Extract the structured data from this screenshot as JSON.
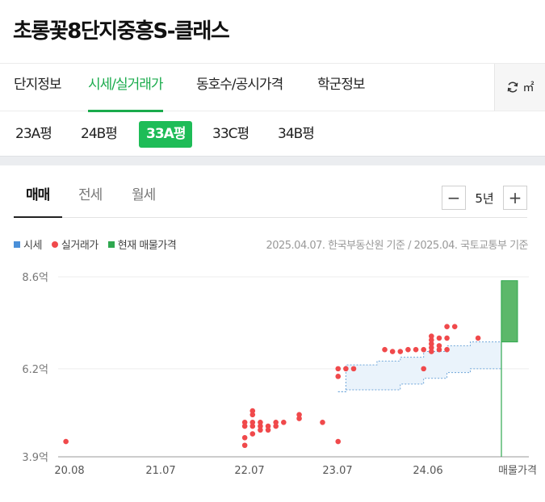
{
  "title": "초롱꽃8단지중흥S-클래스",
  "main_tabs": [
    {
      "label": "단지정보"
    },
    {
      "label": "시세/실거래가"
    },
    {
      "label": "동호수/공시가격"
    },
    {
      "label": "학군정보"
    }
  ],
  "unit_toggle": {
    "label": "㎡",
    "icon": "refresh-icon"
  },
  "types": [
    "23A평",
    "24B평",
    "33A평",
    "33C평",
    "34B평"
  ],
  "selected_type": "33A평",
  "deal_tabs": [
    "매매",
    "전세",
    "월세"
  ],
  "selected_deal": "매매",
  "period": {
    "minus": "−",
    "value": "5년",
    "plus": "+"
  },
  "legend": [
    {
      "label": "시세",
      "color": "#4a90d9",
      "shape": "square"
    },
    {
      "label": "실거래가",
      "color": "#f0494b",
      "shape": "circle"
    },
    {
      "label": "현재 매물가격",
      "color": "#2fa84f",
      "shape": "square"
    }
  ],
  "source_text": "2025.04.07. 한국부동산원 기준 / 2025.04. 국토교통부 기준",
  "chart_data": {
    "type": "scatter",
    "y_unit": "억",
    "ylim": [
      3.9,
      8.6
    ],
    "y_ticks": [
      {
        "value": 3.9,
        "label": "3.9억"
      },
      {
        "value": 6.2,
        "label": "6.2억"
      },
      {
        "value": 8.6,
        "label": "8.6억"
      }
    ],
    "x_ticks": [
      "20.08",
      "21.07",
      "22.07",
      "23.07",
      "24.06",
      "매물가격"
    ],
    "xlim": [
      "2020-07",
      "2025-04"
    ],
    "grid": true,
    "series": [
      {
        "name": "실거래가",
        "points": [
          {
            "x": "2020-08",
            "y": 4.3
          },
          {
            "x": "2022-07",
            "y": 4.2
          },
          {
            "x": "2022-07",
            "y": 4.4
          },
          {
            "x": "2022-07",
            "y": 4.7
          },
          {
            "x": "2022-07",
            "y": 4.8
          },
          {
            "x": "2022-08",
            "y": 4.5
          },
          {
            "x": "2022-08",
            "y": 4.7
          },
          {
            "x": "2022-08",
            "y": 4.8
          },
          {
            "x": "2022-08",
            "y": 5.0
          },
          {
            "x": "2022-08",
            "y": 5.1
          },
          {
            "x": "2022-09",
            "y": 4.6
          },
          {
            "x": "2022-09",
            "y": 4.7
          },
          {
            "x": "2022-09",
            "y": 4.8
          },
          {
            "x": "2022-10",
            "y": 4.6
          },
          {
            "x": "2022-10",
            "y": 4.7
          },
          {
            "x": "2022-11",
            "y": 4.7
          },
          {
            "x": "2022-11",
            "y": 4.8
          },
          {
            "x": "2022-12",
            "y": 4.8
          },
          {
            "x": "2023-02",
            "y": 4.9
          },
          {
            "x": "2023-02",
            "y": 5.0
          },
          {
            "x": "2023-05",
            "y": 4.8
          },
          {
            "x": "2023-07",
            "y": 4.3
          },
          {
            "x": "2023-07",
            "y": 6.0
          },
          {
            "x": "2023-07",
            "y": 6.2
          },
          {
            "x": "2023-08",
            "y": 6.2
          },
          {
            "x": "2023-09",
            "y": 6.2
          },
          {
            "x": "2024-01",
            "y": 6.7
          },
          {
            "x": "2024-02",
            "y": 6.65
          },
          {
            "x": "2024-03",
            "y": 6.65
          },
          {
            "x": "2024-04",
            "y": 6.7
          },
          {
            "x": "2024-05",
            "y": 6.7
          },
          {
            "x": "2024-06",
            "y": 6.2
          },
          {
            "x": "2024-06",
            "y": 6.7
          },
          {
            "x": "2024-07",
            "y": 6.65
          },
          {
            "x": "2024-07",
            "y": 6.75
          },
          {
            "x": "2024-07",
            "y": 6.85
          },
          {
            "x": "2024-07",
            "y": 6.95
          },
          {
            "x": "2024-07",
            "y": 7.05
          },
          {
            "x": "2024-08",
            "y": 6.7
          },
          {
            "x": "2024-08",
            "y": 6.8
          },
          {
            "x": "2024-08",
            "y": 7.0
          },
          {
            "x": "2024-09",
            "y": 6.7
          },
          {
            "x": "2024-09",
            "y": 7.0
          },
          {
            "x": "2024-09",
            "y": 7.3
          },
          {
            "x": "2024-10",
            "y": 7.3
          },
          {
            "x": "2025-01",
            "y": 7.0
          }
        ]
      },
      {
        "name": "시세",
        "band": [
          {
            "x": "2023-07",
            "low": 5.6,
            "high": 5.6
          },
          {
            "x": "2023-08",
            "low": 5.65,
            "high": 6.3
          },
          {
            "x": "2023-12",
            "low": 5.65,
            "high": 6.4
          },
          {
            "x": "2024-03",
            "low": 5.8,
            "high": 6.5
          },
          {
            "x": "2024-06",
            "low": 5.95,
            "high": 6.65
          },
          {
            "x": "2024-09",
            "low": 6.1,
            "high": 6.8
          },
          {
            "x": "2024-12",
            "low": 6.2,
            "high": 6.9
          },
          {
            "x": "2025-04",
            "low": 6.2,
            "high": 6.9
          }
        ]
      },
      {
        "name": "현재 매물가격",
        "range": [
          6.9,
          8.5
        ]
      }
    ]
  }
}
